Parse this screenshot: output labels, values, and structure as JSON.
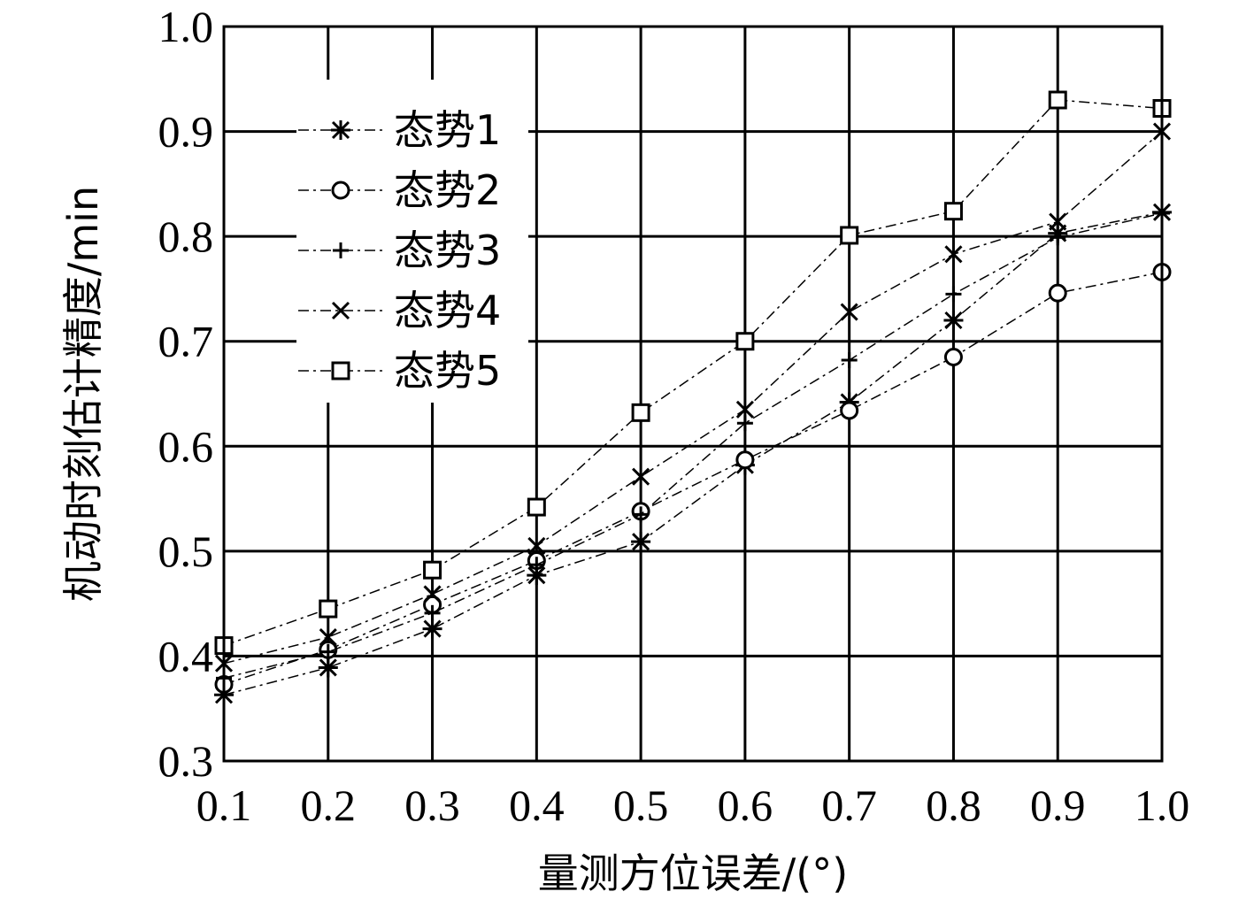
{
  "chart_data": {
    "type": "line",
    "title": "",
    "xlabel": "量测方位误差/(°)",
    "ylabel": "机动时刻估计精度/min",
    "xlim": [
      0.1,
      1.0
    ],
    "ylim": [
      0.3,
      1.0
    ],
    "x_ticks": [
      "0.1",
      "0.2",
      "0.3",
      "0.4",
      "0.5",
      "0.6",
      "0.7",
      "0.8",
      "0.9",
      "1.0"
    ],
    "y_ticks": [
      "0.3",
      "0.4",
      "0.5",
      "0.6",
      "0.7",
      "0.8",
      "0.9",
      "1.0"
    ],
    "grid": true,
    "legend_position": "top-left",
    "line_style": "dash-dot",
    "x": [
      0.1,
      0.2,
      0.3,
      0.4,
      0.5,
      0.6,
      0.7,
      0.8,
      0.9,
      1.0
    ],
    "series": [
      {
        "name": "态势1",
        "marker": "asterisk",
        "values": [
          0.363,
          0.389,
          0.426,
          0.477,
          0.509,
          0.582,
          0.642,
          0.72,
          0.803,
          0.823
        ]
      },
      {
        "name": "态势2",
        "marker": "circle",
        "values": [
          0.373,
          0.406,
          0.449,
          0.491,
          0.538,
          0.587,
          0.634,
          0.685,
          0.746,
          0.766
        ]
      },
      {
        "name": "态势3",
        "marker": "plus",
        "values": [
          0.379,
          0.404,
          0.441,
          0.487,
          0.535,
          0.622,
          0.682,
          0.745,
          0.799,
          0.822
        ]
      },
      {
        "name": "态势4",
        "marker": "cross",
        "values": [
          0.393,
          0.418,
          0.459,
          0.505,
          0.571,
          0.635,
          0.728,
          0.783,
          0.814,
          0.9
        ]
      },
      {
        "name": "态势5",
        "marker": "square",
        "values": [
          0.41,
          0.445,
          0.482,
          0.542,
          0.632,
          0.7,
          0.801,
          0.824,
          0.93,
          0.922
        ]
      }
    ]
  }
}
